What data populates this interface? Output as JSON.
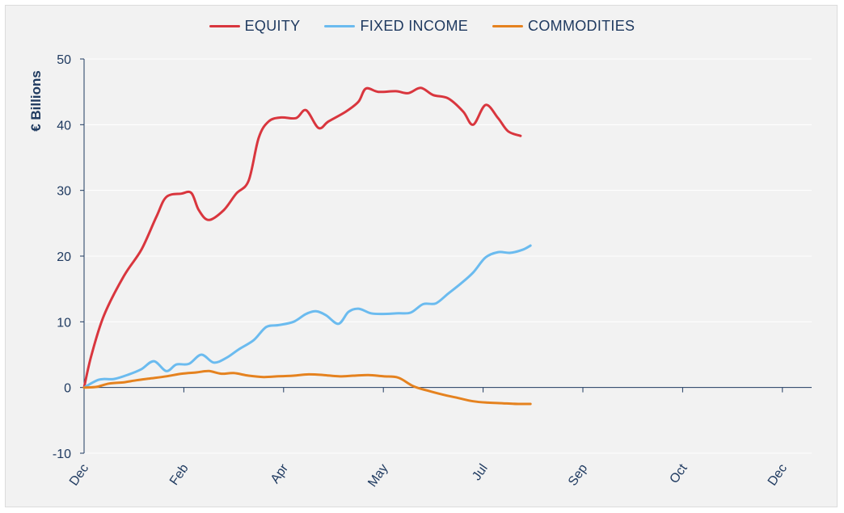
{
  "chart_data": {
    "type": "line",
    "ylabel": "€ Billions",
    "ylim": [
      -10,
      50
    ],
    "yticks": [
      50,
      40,
      30,
      20,
      10,
      0,
      -10
    ],
    "x_ticks": [
      "Dec",
      "Feb",
      "Apr",
      "May",
      "Jul",
      "Sep",
      "Oct",
      "Dec"
    ],
    "x_range": [
      0,
      28
    ],
    "grid": true,
    "legend_position": "top-center",
    "series": [
      {
        "name": "EQUITY",
        "color": "#d9363e",
        "points": [
          [
            0,
            0
          ],
          [
            0.3,
            5
          ],
          [
            0.8,
            11
          ],
          [
            1.6,
            17
          ],
          [
            2.3,
            21
          ],
          [
            2.9,
            26
          ],
          [
            3.3,
            29
          ],
          [
            3.9,
            29.5
          ],
          [
            4.3,
            29.6
          ],
          [
            4.6,
            27
          ],
          [
            5.0,
            25.5
          ],
          [
            5.6,
            27
          ],
          [
            6.1,
            29.5
          ],
          [
            6.6,
            31.5
          ],
          [
            7.0,
            38
          ],
          [
            7.4,
            40.5
          ],
          [
            7.9,
            41.1
          ],
          [
            8.5,
            41
          ],
          [
            8.9,
            42.2
          ],
          [
            9.4,
            39.5
          ],
          [
            9.8,
            40.5
          ],
          [
            10.5,
            42
          ],
          [
            11.0,
            43.5
          ],
          [
            11.3,
            45.5
          ],
          [
            11.8,
            45
          ],
          [
            12.5,
            45.1
          ],
          [
            13.0,
            44.8
          ],
          [
            13.5,
            45.6
          ],
          [
            14.0,
            44.5
          ],
          [
            14.6,
            44
          ],
          [
            15.2,
            42
          ],
          [
            15.6,
            40
          ],
          [
            16.1,
            43
          ],
          [
            16.6,
            41
          ],
          [
            17.0,
            39
          ],
          [
            17.5,
            38.3
          ]
        ]
      },
      {
        "name": "FIXED INCOME",
        "color": "#6bbbef",
        "points": [
          [
            0,
            0
          ],
          [
            0.6,
            1.2
          ],
          [
            1.2,
            1.3
          ],
          [
            1.8,
            2
          ],
          [
            2.3,
            2.8
          ],
          [
            2.8,
            4
          ],
          [
            3.3,
            2.5
          ],
          [
            3.7,
            3.5
          ],
          [
            4.2,
            3.6
          ],
          [
            4.7,
            5
          ],
          [
            5.2,
            3.8
          ],
          [
            5.7,
            4.5
          ],
          [
            6.2,
            5.8
          ],
          [
            6.8,
            7.2
          ],
          [
            7.3,
            9.2
          ],
          [
            7.8,
            9.5
          ],
          [
            8.4,
            10
          ],
          [
            8.9,
            11.2
          ],
          [
            9.3,
            11.6
          ],
          [
            9.7,
            11
          ],
          [
            10.2,
            9.7
          ],
          [
            10.6,
            11.5
          ],
          [
            11.0,
            12
          ],
          [
            11.5,
            11.3
          ],
          [
            12.0,
            11.2
          ],
          [
            12.6,
            11.3
          ],
          [
            13.1,
            11.4
          ],
          [
            13.6,
            12.7
          ],
          [
            14.1,
            12.8
          ],
          [
            14.6,
            14.3
          ],
          [
            15.1,
            15.8
          ],
          [
            15.6,
            17.5
          ],
          [
            16.1,
            19.8
          ],
          [
            16.6,
            20.6
          ],
          [
            17.1,
            20.5
          ],
          [
            17.6,
            21
          ],
          [
            17.9,
            21.6
          ]
        ]
      },
      {
        "name": "COMMODITIES",
        "color": "#e5821f",
        "points": [
          [
            0,
            0
          ],
          [
            0.5,
            0.1
          ],
          [
            1.0,
            0.6
          ],
          [
            1.6,
            0.8
          ],
          [
            2.1,
            1.1
          ],
          [
            2.7,
            1.4
          ],
          [
            3.3,
            1.7
          ],
          [
            3.9,
            2.1
          ],
          [
            4.5,
            2.3
          ],
          [
            5.0,
            2.5
          ],
          [
            5.5,
            2.1
          ],
          [
            6.0,
            2.2
          ],
          [
            6.6,
            1.8
          ],
          [
            7.2,
            1.6
          ],
          [
            7.8,
            1.7
          ],
          [
            8.4,
            1.8
          ],
          [
            9.0,
            2
          ],
          [
            9.6,
            1.9
          ],
          [
            10.2,
            1.7
          ],
          [
            10.8,
            1.8
          ],
          [
            11.4,
            1.9
          ],
          [
            12.0,
            1.7
          ],
          [
            12.6,
            1.5
          ],
          [
            13.2,
            0.2
          ],
          [
            13.8,
            -0.5
          ],
          [
            14.4,
            -1.1
          ],
          [
            15.0,
            -1.6
          ],
          [
            15.6,
            -2.1
          ],
          [
            16.2,
            -2.3
          ],
          [
            16.8,
            -2.4
          ],
          [
            17.4,
            -2.5
          ],
          [
            17.9,
            -2.5
          ]
        ]
      }
    ]
  }
}
